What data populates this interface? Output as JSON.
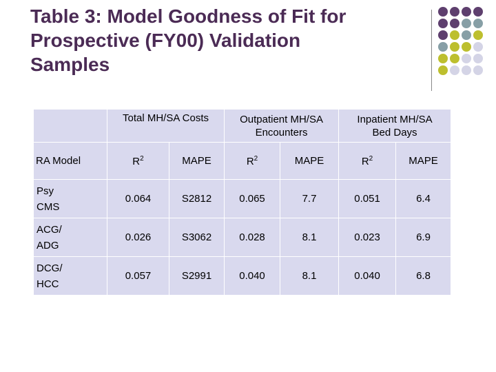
{
  "title": {
    "line1": "Table 3: Model Goodness of Fit for",
    "line2": "Prospective (FY00) Validation",
    "line3": "Samples"
  },
  "colors": {
    "title": "#4b2b55",
    "table_bg": "#d9d9ee",
    "dot_purple": "#5e3f6e",
    "dot_teal": "#879fa6",
    "dot_olive": "#bdbf2e",
    "dot_lavender": "#d4d4e6"
  },
  "table": {
    "groups": [
      {
        "line1": "Total MH/SA Costs",
        "line2": ""
      },
      {
        "line1": "Outpatient MH/SA",
        "line2": "Encounters"
      },
      {
        "line1": "Inpatient MH/SA",
        "line2": "Bed Days"
      }
    ],
    "subheader": {
      "model": "RA Model",
      "r": "R",
      "r_sup": "2",
      "mape": "MAPE"
    },
    "rows": [
      {
        "model_line1": "Psy",
        "model_line2": "CMS",
        "vals": [
          "0.064",
          "S2812",
          "0.065",
          "7.7",
          "0.051",
          "6.4"
        ]
      },
      {
        "model_line1": "ACG/",
        "model_line2": "ADG",
        "vals": [
          "0.026",
          "S3062",
          "0.028",
          "8.1",
          "0.023",
          "6.9"
        ]
      },
      {
        "model_line1": "DCG/",
        "model_line2": "HCC",
        "vals": [
          "0.057",
          "S2991",
          "0.040",
          "8.1",
          "0.040",
          "6.8"
        ]
      }
    ]
  }
}
